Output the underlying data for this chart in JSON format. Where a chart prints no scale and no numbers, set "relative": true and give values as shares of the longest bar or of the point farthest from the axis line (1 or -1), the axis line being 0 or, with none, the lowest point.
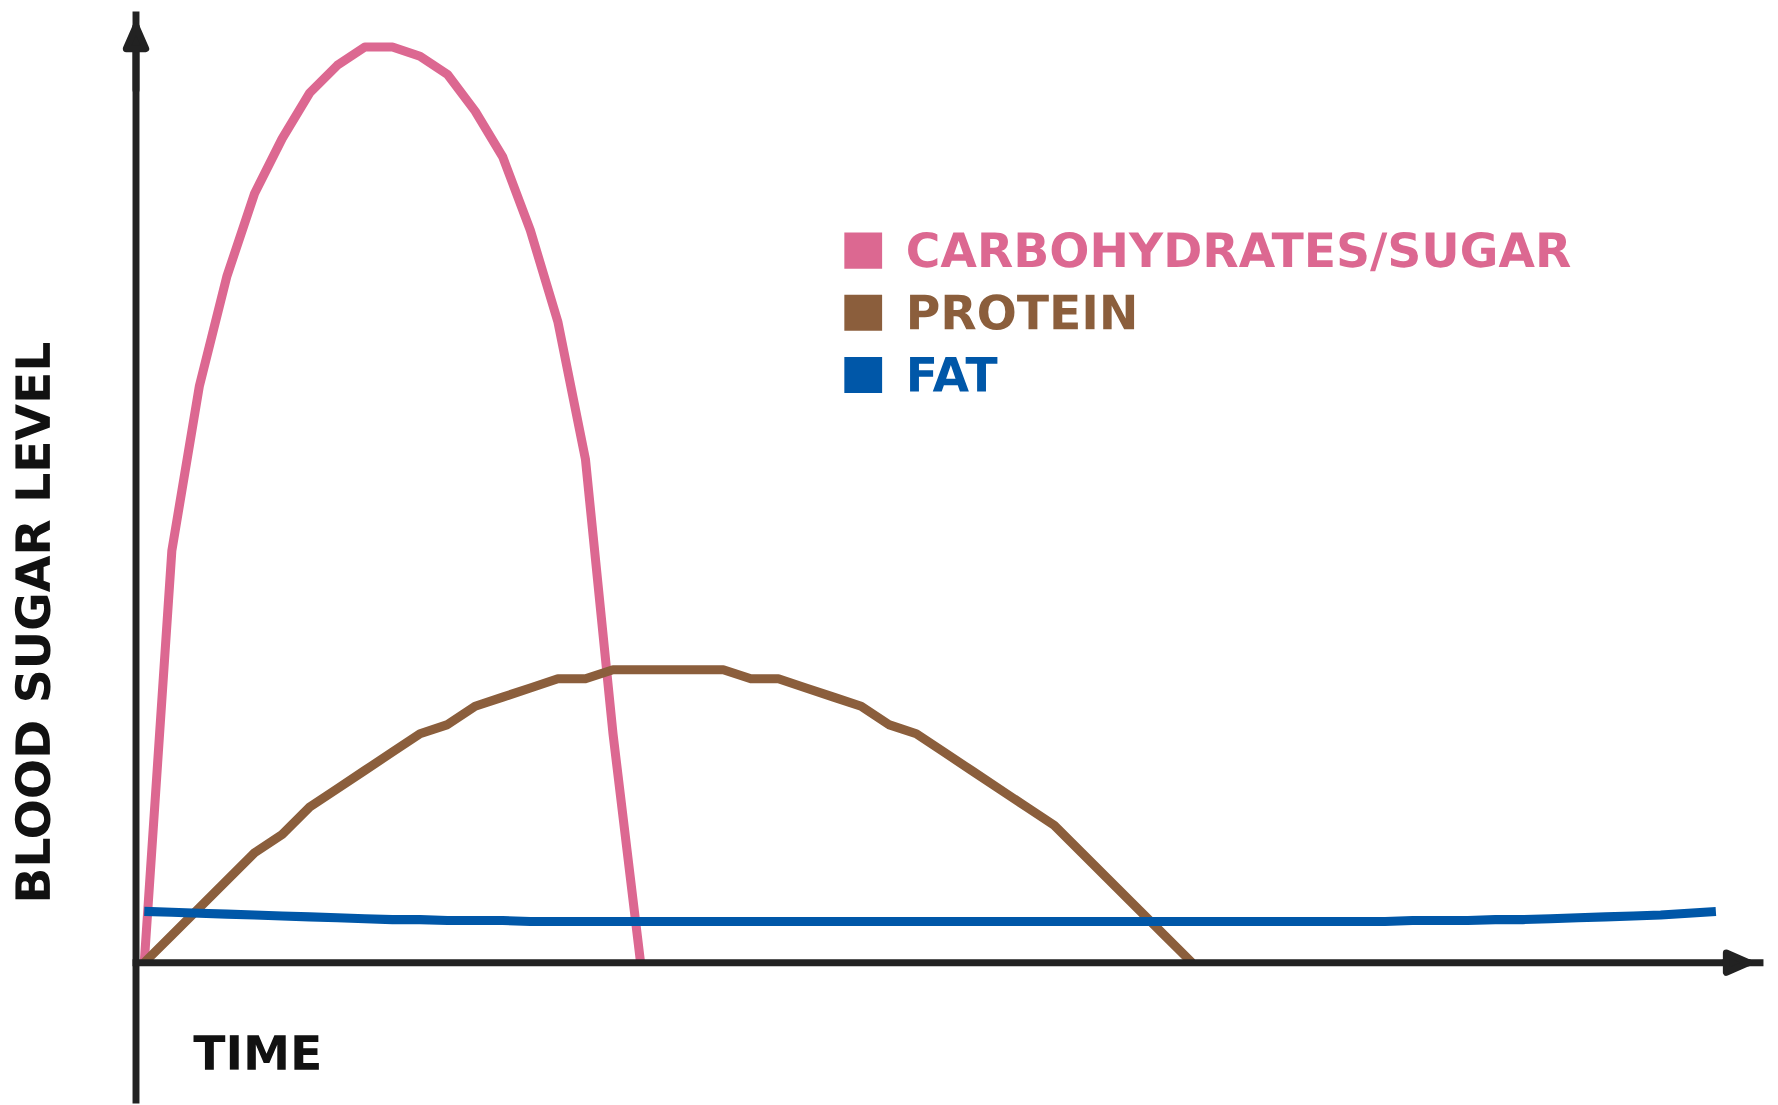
{
  "chart_data": {
    "type": "line",
    "relative": true,
    "xlabel": "TIME",
    "ylabel": "BLOOD SUGAR LEVEL",
    "legend": "top right",
    "marker": "none",
    "line_style": "solid",
    "categories": [
      null,
      null,
      null,
      null,
      null,
      null,
      null,
      null,
      null,
      null,
      null,
      null,
      null,
      null,
      null,
      null,
      null,
      null,
      null,
      null,
      null,
      null,
      null,
      null,
      null,
      null,
      null,
      null,
      null,
      null,
      null,
      null,
      null,
      null,
      null,
      null,
      null,
      null,
      null,
      null,
      null,
      null,
      null,
      null,
      null,
      null,
      null,
      null,
      null,
      null,
      null,
      null,
      null,
      null,
      null,
      null,
      null,
      null
    ],
    "series": [
      {
        "name": "CARBOHYDRATES/SUGAR",
        "color": "#dc6891",
        "values": [
          0,
          0.45,
          0.63,
          0.75,
          0.84,
          0.9,
          0.95,
          0.98,
          1.0,
          1.0,
          0.99,
          0.97,
          0.93,
          0.88,
          0.8,
          0.7,
          0.55,
          0.25,
          0,
          null,
          null,
          null,
          null,
          null,
          null,
          null,
          null,
          null,
          null,
          null,
          null,
          null,
          null,
          null,
          null,
          null,
          null,
          null,
          null,
          null,
          null,
          null,
          null,
          null,
          null,
          null,
          null,
          null,
          null,
          null,
          null,
          null,
          null,
          null,
          null,
          null,
          null,
          null
        ]
      },
      {
        "name": "PROTEIN",
        "color": "#8b5e3c",
        "values": [
          0,
          0.03,
          0.06,
          0.09,
          0.12,
          0.14,
          0.17,
          0.19,
          0.21,
          0.23,
          0.25,
          0.26,
          0.28,
          0.29,
          0.3,
          0.31,
          0.31,
          0.32,
          0.32,
          0.32,
          0.32,
          0.32,
          0.31,
          0.31,
          0.3,
          0.29,
          0.28,
          0.26,
          0.25,
          0.23,
          0.21,
          0.19,
          0.17,
          0.15,
          0.12,
          0.09,
          0.06,
          0.03,
          0,
          null,
          null,
          null,
          null,
          null,
          null,
          null,
          null,
          null,
          null,
          null,
          null,
          null,
          null,
          null,
          null,
          null,
          null,
          null
        ]
      },
      {
        "name": "FAT",
        "color": "#0057a8",
        "values": [
          0.056,
          0.055,
          0.054,
          0.053,
          0.052,
          0.051,
          0.05,
          0.049,
          0.048,
          0.047,
          0.047,
          0.046,
          0.046,
          0.046,
          0.045,
          0.045,
          0.045,
          0.045,
          0.045,
          0.045,
          0.045,
          0.045,
          0.045,
          0.045,
          0.045,
          0.045,
          0.045,
          0.045,
          0.045,
          0.045,
          0.045,
          0.045,
          0.045,
          0.045,
          0.045,
          0.045,
          0.045,
          0.045,
          0.045,
          0.045,
          0.045,
          0.045,
          0.045,
          0.045,
          0.045,
          0.045,
          0.046,
          0.046,
          0.046,
          0.047,
          0.047,
          0.048,
          0.049,
          0.05,
          0.051,
          0.052,
          0.054,
          0.056
        ]
      }
    ]
  }
}
